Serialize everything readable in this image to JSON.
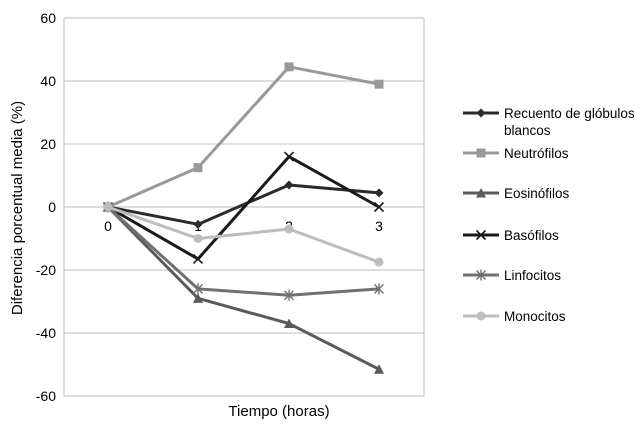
{
  "chart_data": {
    "type": "line",
    "x": [
      0,
      1,
      2,
      3
    ],
    "xticks": [
      "0",
      "1",
      "2",
      "3"
    ],
    "xlabel": "Tiempo (horas)",
    "ylabel": "Diferencia porcentual media (%)",
    "ylim": [
      -60,
      60
    ],
    "yticks": [
      "60",
      "40",
      "20",
      "0",
      "-20",
      "-40",
      "-60"
    ],
    "grid": true,
    "legend_position": "right",
    "series": [
      {
        "name": "Recuento de glóbulos blancos",
        "values": [
          0,
          -5.5,
          7,
          4.5
        ],
        "color": "#2b2b2b",
        "marker": "diamond"
      },
      {
        "name": "Neutrófilos",
        "values": [
          0,
          12.5,
          44.5,
          39
        ],
        "color": "#999999",
        "marker": "square"
      },
      {
        "name": "Eosinófilos",
        "values": [
          0,
          -29,
          -37,
          -51.5
        ],
        "color": "#5a5a5a",
        "marker": "triangle"
      },
      {
        "name": "Basófilos",
        "values": [
          0,
          -16.5,
          16,
          0
        ],
        "color": "#1a1a1a",
        "marker": "x"
      },
      {
        "name": "Linfocitos",
        "values": [
          0,
          -26,
          -28,
          -26
        ],
        "color": "#707070",
        "marker": "star"
      },
      {
        "name": "Monocitos",
        "values": [
          0,
          -10,
          -7,
          -17.5
        ],
        "color": "#bdbdbd",
        "marker": "circle"
      }
    ]
  }
}
